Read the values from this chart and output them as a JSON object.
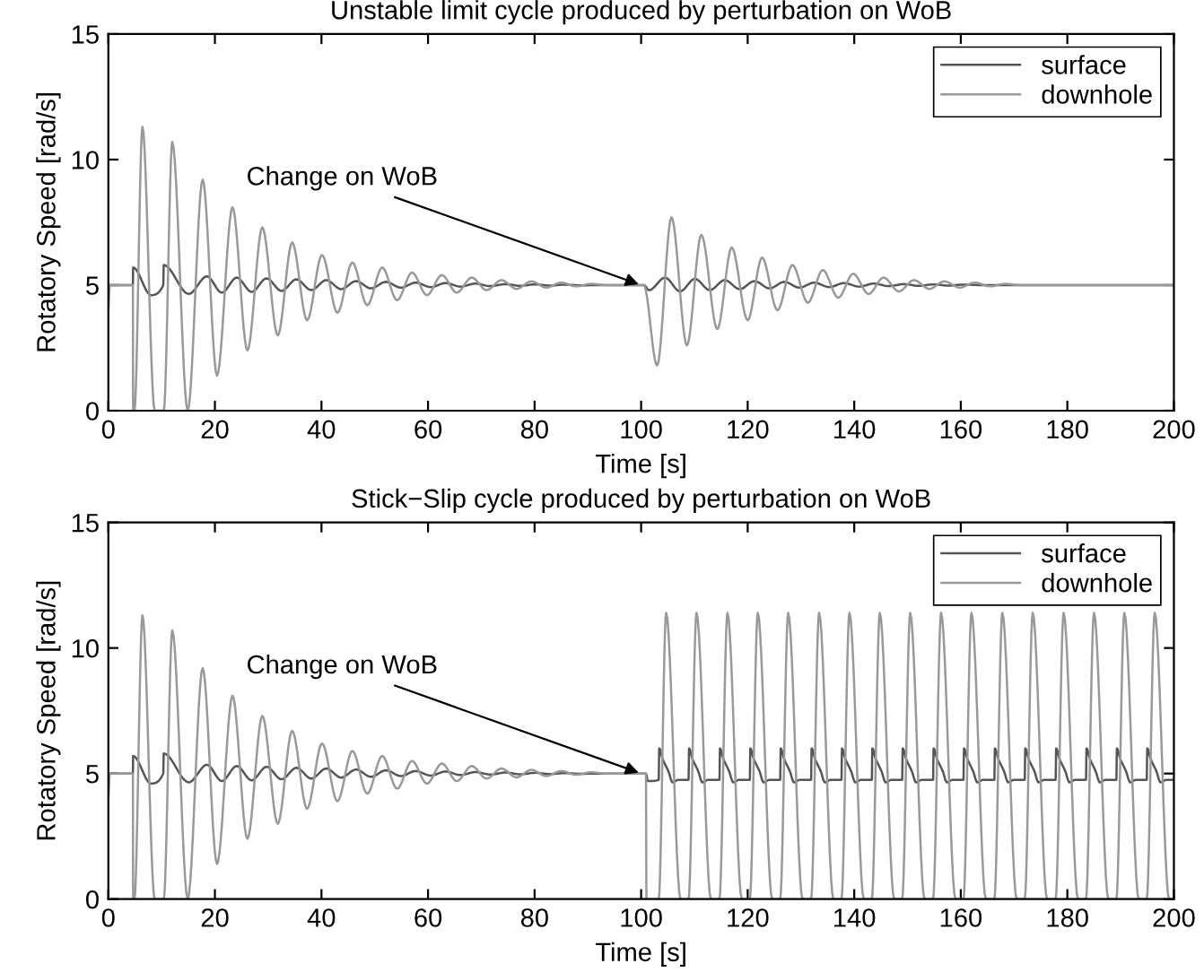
{
  "chart_data": [
    {
      "type": "line",
      "title": "Unstable limit cycle produced by perturbation on WoB",
      "xlabel": "Time [s]",
      "ylabel": "Rotatory Speed [rad/s]",
      "xlim": [
        0,
        200
      ],
      "ylim": [
        0,
        15
      ],
      "xticks": [
        0,
        20,
        40,
        60,
        80,
        100,
        120,
        140,
        160,
        180,
        200
      ],
      "yticks": [
        0,
        5,
        10,
        15
      ],
      "grid": false,
      "legend": "top right",
      "marker": "none",
      "line_style": "solid",
      "annotations": [
        {
          "text": "Change on WoB",
          "x": 100,
          "y": 5
        }
      ],
      "series": [
        {
          "name": "surface",
          "color": "#555555",
          "x": [
            0,
            4.6,
            4.65,
            8.0,
            10.3,
            10.4,
            15.1,
            18.5,
            21.3,
            24.1,
            26.9,
            29.7,
            32.5,
            35.3,
            38.1,
            40.9,
            43.7,
            46.5,
            49.3,
            52.1,
            54.9,
            57.7,
            60.5,
            63.3,
            66.1,
            68.9,
            71.7,
            74.5,
            77.3,
            80.1,
            82.9,
            85.7,
            88.5,
            92,
            100.5,
            101.5,
            104.5,
            107.3,
            110.1,
            112.9,
            115.7,
            118.5,
            121.3,
            124.1,
            126.9,
            129.7,
            132.5,
            135.3,
            138.1,
            140.9,
            143.7,
            146.5,
            149.3,
            152.1,
            154.9,
            157.7,
            160.5,
            164,
            200
          ],
          "values": [
            5,
            5,
            5.7,
            4.6,
            5.0,
            5.8,
            4.65,
            5.35,
            4.7,
            5.3,
            4.73,
            5.27,
            4.77,
            5.23,
            4.8,
            5.2,
            4.84,
            5.16,
            4.87,
            5.13,
            4.9,
            5.1,
            4.92,
            5.08,
            4.94,
            5.06,
            4.96,
            5.04,
            4.97,
            5.03,
            4.98,
            5.02,
            4.99,
            5,
            5,
            4.8,
            5.3,
            4.75,
            5.25,
            4.8,
            5.2,
            4.84,
            5.16,
            4.87,
            5.13,
            4.9,
            5.1,
            4.92,
            5.08,
            4.94,
            5.06,
            4.96,
            5.04,
            4.97,
            5.03,
            4.98,
            5.02,
            5,
            5
          ]
        },
        {
          "name": "downhole",
          "color": "#999999",
          "x": [
            0,
            0.3,
            4.6,
            4.65,
            4.9,
            6.4,
            8.7,
            10.4,
            12.0,
            14.9,
            17.7,
            20.4,
            23.3,
            26.1,
            28.9,
            31.8,
            34.5,
            37.3,
            40.1,
            43.0,
            45.8,
            48.6,
            51.4,
            54.2,
            57.0,
            59.8,
            62.6,
            65.4,
            68.2,
            71.0,
            73.8,
            76.6,
            79.4,
            82.2,
            85.0,
            87.8,
            90.6,
            93.4,
            100.5,
            103,
            105.7,
            108.6,
            111.3,
            114.3,
            117,
            120,
            122.7,
            125.6,
            128.4,
            131.3,
            134.1,
            137,
            139.8,
            142.7,
            145.5,
            148.4,
            151.2,
            154.1,
            156.9,
            159.8,
            162.6,
            165.5,
            168.3,
            171.2,
            200
          ],
          "values": [
            4.0,
            5,
            5,
            0,
            0,
            11.3,
            0,
            0,
            10.7,
            0,
            9.2,
            1.4,
            8.1,
            2.4,
            7.3,
            3.0,
            6.7,
            3.6,
            6.2,
            3.9,
            5.9,
            4.2,
            5.7,
            4.4,
            5.5,
            4.6,
            5.4,
            4.7,
            5.3,
            4.8,
            5.2,
            4.85,
            5.15,
            4.9,
            5.1,
            4.95,
            5.05,
            5.0,
            5.0,
            1.8,
            7.7,
            2.6,
            7.0,
            3.25,
            6.5,
            3.6,
            6.1,
            4.0,
            5.8,
            4.3,
            5.6,
            4.5,
            5.45,
            4.65,
            5.3,
            4.75,
            5.2,
            4.85,
            5.15,
            4.9,
            5.1,
            4.95,
            5.05,
            5.0,
            5.0
          ]
        }
      ]
    },
    {
      "type": "line",
      "title": "Stick−Slip cycle produced by perturbation on WoB",
      "xlabel": "Time [s]",
      "ylabel": "Rotatory Speed [rad/s]",
      "xlim": [
        0,
        200
      ],
      "ylim": [
        0,
        15
      ],
      "xticks": [
        0,
        20,
        40,
        60,
        80,
        100,
        120,
        140,
        160,
        180,
        200
      ],
      "yticks": [
        0,
        5,
        10,
        15
      ],
      "grid": false,
      "legend": "top right",
      "marker": "none",
      "line_style": "solid",
      "annotations": [
        {
          "text": "Change on WoB",
          "x": 100,
          "y": 5
        }
      ],
      "series": [
        {
          "name": "surface",
          "color": "#555555",
          "x": [
            0,
            4.6,
            4.65,
            8.0,
            10.3,
            10.4,
            15.1,
            18.5,
            21.3,
            24.1,
            26.9,
            29.7,
            32.5,
            35.3,
            38.1,
            40.9,
            43.7,
            46.5,
            49.3,
            52.1,
            54.9,
            57.7,
            60.5,
            63.3,
            66.1,
            68.9,
            71.7,
            74.5,
            77.3,
            80.1,
            82.9,
            85.7,
            88.5,
            92,
            100.5,
            100.9,
            101.3,
            103.3,
            103.4,
            104.0,
            105.1,
            105.9,
            107.0,
            108.9,
            109.0,
            109.6,
            110.7,
            111.5,
            112.6,
            114.7,
            114.8,
            115.4,
            116.5,
            117.3,
            118.4,
            120.4,
            120.5,
            121.1,
            122.2,
            123.0,
            124.1,
            126.1,
            126.2,
            126.8,
            127.9,
            128.7,
            129.8,
            131.9,
            132.0,
            132.6,
            133.7,
            134.5,
            135.6,
            137.6,
            137.7,
            138.3,
            139.4,
            140.2,
            141.3,
            143.3,
            143.4,
            144.0,
            145.1,
            145.9,
            147.0,
            149.0,
            149.1,
            149.7,
            150.8,
            151.6,
            152.7,
            154.8,
            154.9,
            155.5,
            156.6,
            157.4,
            158.5,
            160.5,
            160.6,
            161.2,
            162.3,
            163.1,
            164.2,
            166.3,
            166.4,
            167.0,
            168.1,
            168.9,
            170.0,
            172.0,
            172.1,
            172.7,
            173.8,
            174.6,
            175.7,
            177.8,
            177.9,
            178.5,
            179.6,
            180.4,
            181.5,
            183.5,
            183.6,
            184.2,
            185.3,
            186.1,
            187.2,
            189.2,
            189.3,
            189.9,
            191.0,
            191.8,
            192.9,
            194.9,
            195.0,
            195.6,
            196.7,
            197.5,
            198.6,
            200
          ],
          "values": [
            5,
            5,
            5.7,
            4.6,
            5.0,
            5.8,
            4.65,
            5.35,
            4.7,
            5.3,
            4.73,
            5.27,
            4.77,
            5.23,
            4.8,
            5.2,
            4.84,
            5.16,
            4.87,
            5.13,
            4.9,
            5.1,
            4.92,
            5.08,
            4.94,
            5.06,
            4.96,
            5.04,
            4.97,
            5.03,
            4.98,
            5.02,
            4.99,
            5,
            5,
            5,
            4.7,
            4.75,
            6.0,
            5.6,
            5.1,
            4.65,
            4.75,
            4.75,
            6.0,
            5.6,
            5.1,
            4.65,
            4.75,
            4.75,
            6.0,
            5.6,
            5.1,
            4.65,
            4.75,
            4.75,
            6.0,
            5.6,
            5.1,
            4.65,
            4.75,
            4.75,
            6.0,
            5.6,
            5.1,
            4.65,
            4.75,
            4.75,
            6.0,
            5.6,
            5.1,
            4.65,
            4.75,
            4.75,
            6.0,
            5.6,
            5.1,
            4.65,
            4.75,
            4.75,
            6.0,
            5.6,
            5.1,
            4.65,
            4.75,
            4.75,
            6.0,
            5.6,
            5.1,
            4.65,
            4.75,
            4.75,
            6.0,
            5.6,
            5.1,
            4.65,
            4.75,
            4.75,
            6.0,
            5.6,
            5.1,
            4.65,
            4.75,
            4.75,
            6.0,
            5.6,
            5.1,
            4.65,
            4.75,
            4.75,
            6.0,
            5.6,
            5.1,
            4.65,
            4.75,
            4.75,
            6.0,
            5.6,
            5.1,
            4.65,
            4.75,
            4.75,
            6.0,
            5.6,
            5.1,
            4.65,
            4.75,
            4.75,
            6.0,
            5.6,
            5.1,
            4.65,
            4.75,
            4.75,
            6.0,
            5.6,
            5.1,
            4.65,
            4.75,
            4.75
          ]
        },
        {
          "name": "downhole",
          "color": "#999999",
          "x": [
            0,
            0.3,
            4.6,
            4.65,
            4.9,
            6.4,
            8.7,
            10.4,
            12.0,
            14.9,
            17.7,
            20.4,
            23.3,
            26.1,
            28.9,
            31.8,
            34.5,
            37.3,
            40.1,
            43.0,
            45.8,
            48.6,
            51.4,
            54.2,
            57.0,
            59.8,
            62.6,
            65.4,
            68.2,
            71.0,
            73.8,
            76.6,
            79.4,
            82.2,
            85.0,
            87.8,
            90.6,
            93.4,
            100.5,
            100.9,
            101.0,
            103.3,
            104.7,
            107.4,
            108.9,
            110.4,
            113.1,
            114.7,
            116.2,
            118.9,
            120.4,
            121.9,
            124.6,
            126.1,
            127.6,
            130.3,
            131.9,
            133.4,
            136.1,
            137.6,
            139.1,
            141.8,
            143.3,
            144.8,
            147.5,
            149.0,
            150.5,
            153.2,
            154.8,
            156.3,
            159.0,
            160.5,
            162.0,
            164.7,
            166.3,
            167.8,
            170.5,
            172.0,
            173.5,
            176.2,
            177.8,
            179.3,
            182.0,
            183.5,
            185.0,
            187.7,
            189.2,
            190.7,
            193.4,
            194.9,
            196.4,
            199.1,
            200
          ],
          "values": [
            4.0,
            5,
            5,
            0,
            0,
            11.3,
            0,
            0,
            10.7,
            0,
            9.2,
            1.4,
            8.1,
            2.4,
            7.3,
            3.0,
            6.7,
            3.6,
            6.2,
            3.9,
            5.9,
            4.2,
            5.7,
            4.4,
            5.5,
            4.6,
            5.4,
            4.7,
            5.3,
            4.8,
            5.2,
            4.85,
            5.15,
            4.9,
            5.1,
            4.95,
            5.05,
            5.0,
            5.0,
            5.0,
            0,
            0,
            11.4,
            0,
            0,
            11.4,
            0,
            0,
            11.4,
            0,
            0,
            11.4,
            0,
            0,
            11.4,
            0,
            0,
            11.4,
            0,
            0,
            11.4,
            0,
            0,
            11.4,
            0,
            0,
            11.4,
            0,
            0,
            11.4,
            0,
            0,
            11.4,
            0,
            0,
            11.4,
            0,
            0,
            11.4,
            0,
            0,
            11.4,
            0,
            0,
            11.4,
            0,
            0,
            11.4,
            0,
            0,
            11.4,
            0,
            0
          ]
        }
      ]
    }
  ]
}
